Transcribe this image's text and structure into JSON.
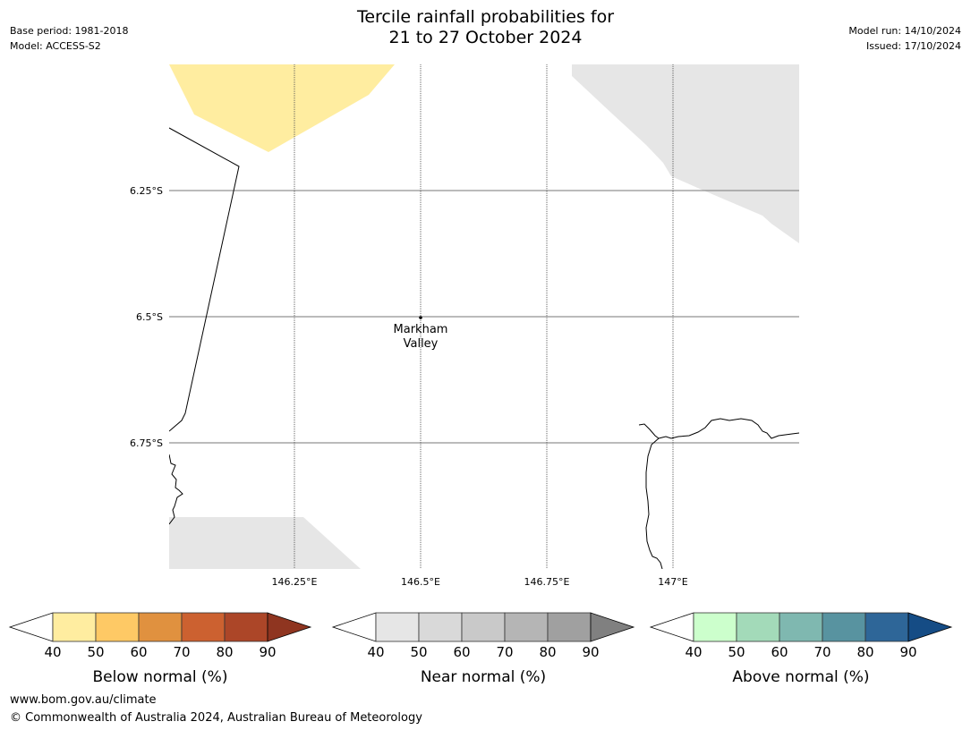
{
  "title_line1": "Tercile rainfall probabilities for",
  "title_line2": "21 to 27 October 2024",
  "header_left": {
    "base_period": "Base period: 1981-2018",
    "model": "Model: ACCESS-S2"
  },
  "header_right": {
    "model_run": "Model run: 14/10/2024",
    "issued": "Issued: 17/10/2024"
  },
  "map": {
    "lat_labels": [
      "6.25°S",
      "6.5°S",
      "6.75°S"
    ],
    "lon_labels": [
      "146.25°E",
      "146.5°E",
      "146.75°E",
      "147°E"
    ],
    "place": {
      "line1": "Markham",
      "line2": "Valley"
    }
  },
  "colorbars": [
    {
      "label": "Below normal (%)",
      "ticks": [
        "40",
        "50",
        "60",
        "70",
        "80",
        "90"
      ],
      "colors": [
        "#ffeda0",
        "#fec965",
        "#e0913f",
        "#cc6130",
        "#ac4628",
        "#8f3520"
      ]
    },
    {
      "label": "Near normal (%)",
      "ticks": [
        "40",
        "50",
        "60",
        "70",
        "80",
        "90"
      ],
      "colors": [
        "#e6e6e6",
        "#d9d9d9",
        "#c9c9c9",
        "#b5b5b5",
        "#a0a0a0",
        "#808080"
      ]
    },
    {
      "label": "Above normal (%)",
      "ticks": [
        "40",
        "50",
        "60",
        "70",
        "80",
        "90"
      ],
      "colors": [
        "#ccffcc",
        "#a3dab9",
        "#7fb8b0",
        "#5893a0",
        "#2e6698",
        "#154c85"
      ]
    }
  ],
  "footer": {
    "website": "www.bom.gov.au/climate",
    "copyright": "© Commonwealth of Australia 2024, Australian Bureau of Meteorology"
  }
}
